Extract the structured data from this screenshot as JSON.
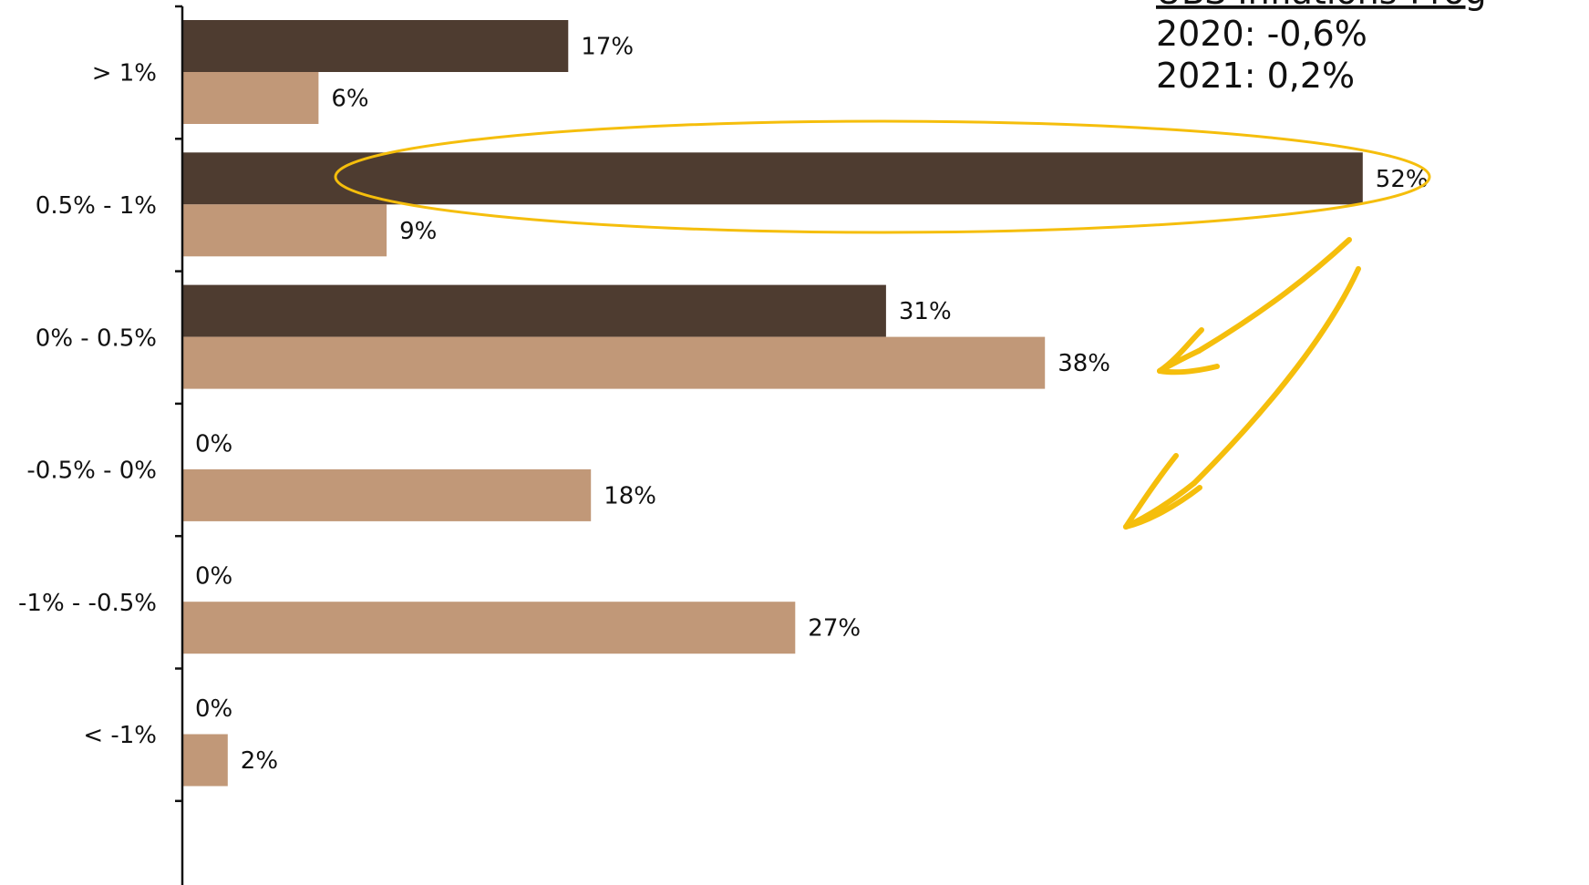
{
  "chart_data": {
    "type": "bar",
    "orientation": "horizontal",
    "categories": [
      "> 1%",
      "0.5% - 1%",
      "0% - 0.5%",
      "-0.5% - 0%",
      "-1% - -0.5%",
      "< -1%"
    ],
    "series": [
      {
        "values": [
          17,
          52,
          31,
          0,
          0,
          0
        ],
        "color": "#4e3c30"
      },
      {
        "values": [
          6,
          9,
          38,
          18,
          27,
          2
        ],
        "color": "#c19878"
      }
    ],
    "value_suffix": "%",
    "xlim": [
      0,
      52
    ],
    "grid": false,
    "highlight": {
      "category": "0.5% - 1%",
      "series": 0,
      "color": "#f5be0c"
    }
  },
  "projection_box": {
    "heading": "UBS Inflations-Prog",
    "lines": [
      "2020: -0,6%",
      "2021: 0,2%"
    ]
  },
  "annotation_color": "#f5be0c"
}
